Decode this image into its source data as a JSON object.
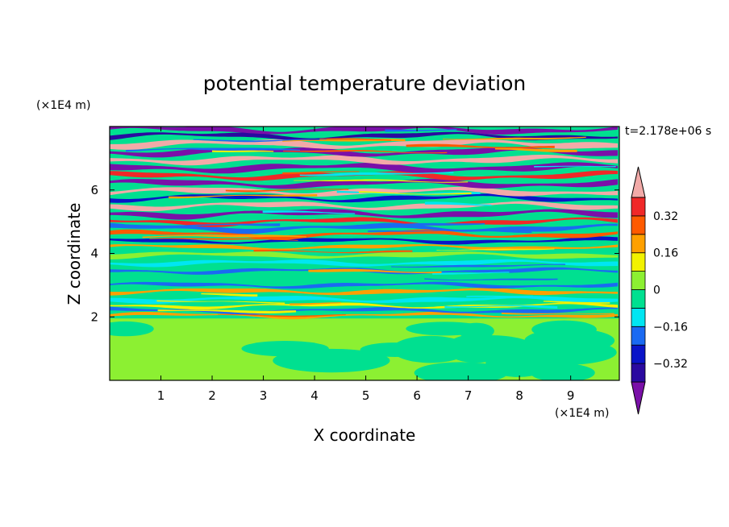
{
  "chart_data": {
    "type": "heatmap",
    "title": "potential temperature deviation",
    "xlabel": "X coordinate",
    "ylabel": "Z coordinate",
    "x_unit": "(×1E4 m)",
    "y_unit": "(×1E4 m)",
    "time_label": "t=2.178e+06 s",
    "xlim": [
      0,
      9.95
    ],
    "ylim": [
      0,
      8
    ],
    "x_ticks": [
      1,
      2,
      3,
      4,
      5,
      6,
      7,
      8,
      9
    ],
    "y_ticks": [
      2,
      4,
      6
    ],
    "colorbar": {
      "levels": [
        -0.4,
        -0.32,
        -0.24,
        -0.16,
        -0.08,
        0,
        0.08,
        0.16,
        0.24,
        0.32,
        0.4
      ],
      "tick_labels": [
        "0.32",
        "0.16",
        "0",
        "−0.16",
        "−0.32"
      ],
      "tick_values": [
        0.32,
        0.16,
        0,
        -0.16,
        -0.32
      ],
      "colors": [
        "#7a10a8",
        "#2a0aa0",
        "#0a14c8",
        "#1a6af2",
        "#00e6f2",
        "#00e090",
        "#8cf032",
        "#f2f200",
        "#ffa000",
        "#ff5a00",
        "#f02828",
        "#f2aaa8"
      ],
      "extend": "both"
    },
    "layers": [
      {
        "z_min": 0,
        "z_max": 1.9,
        "dominant_values": [
          0.04,
          -0.04
        ],
        "description_note": ""
      },
      {
        "z_min": 1.9,
        "z_max": 4.3,
        "dominant_values": [
          -0.04,
          -0.12,
          0.04,
          0.2
        ]
      },
      {
        "z_min": 4.3,
        "z_max": 7.9,
        "dominant_values": [
          0.44,
          -0.44,
          0.28,
          -0.28
        ]
      }
    ]
  }
}
